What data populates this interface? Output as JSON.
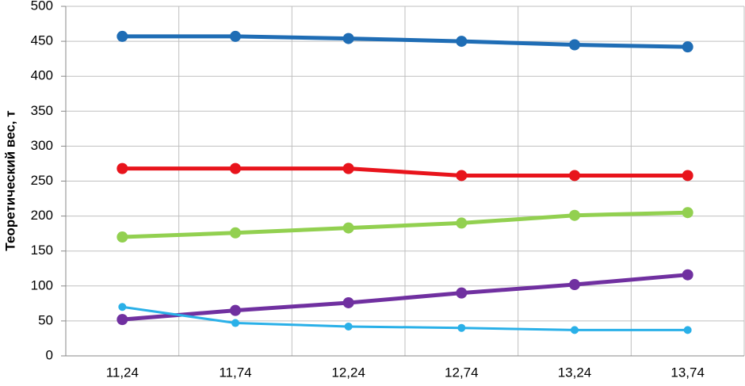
{
  "chart_data": {
    "type": "line",
    "y_label": "Теоретический вес, т",
    "categories": [
      "11,24",
      "11,74",
      "12,24",
      "12,74",
      "13,24",
      "13,74"
    ],
    "series": [
      {
        "color": "#1f6db5",
        "line_width": 5,
        "values": [
          457,
          457,
          454,
          450,
          445,
          442
        ]
      },
      {
        "color": "#e8141c",
        "line_width": 5,
        "values": [
          268,
          268,
          268,
          258,
          258,
          258
        ]
      },
      {
        "color": "#92d050",
        "line_width": 5,
        "values": [
          170,
          176,
          183,
          190,
          201,
          205
        ]
      },
      {
        "color": "#7030a0",
        "line_width": 5,
        "values": [
          52,
          65,
          76,
          90,
          102,
          116
        ]
      },
      {
        "color": "#2ab0e8",
        "line_width": 3,
        "values": [
          70,
          47,
          42,
          40,
          37,
          37
        ]
      }
    ],
    "ylim": [
      0,
      500
    ],
    "yticks": [
      0,
      50,
      100,
      150,
      200,
      250,
      300,
      350,
      400,
      450,
      500
    ],
    "grid": true
  }
}
